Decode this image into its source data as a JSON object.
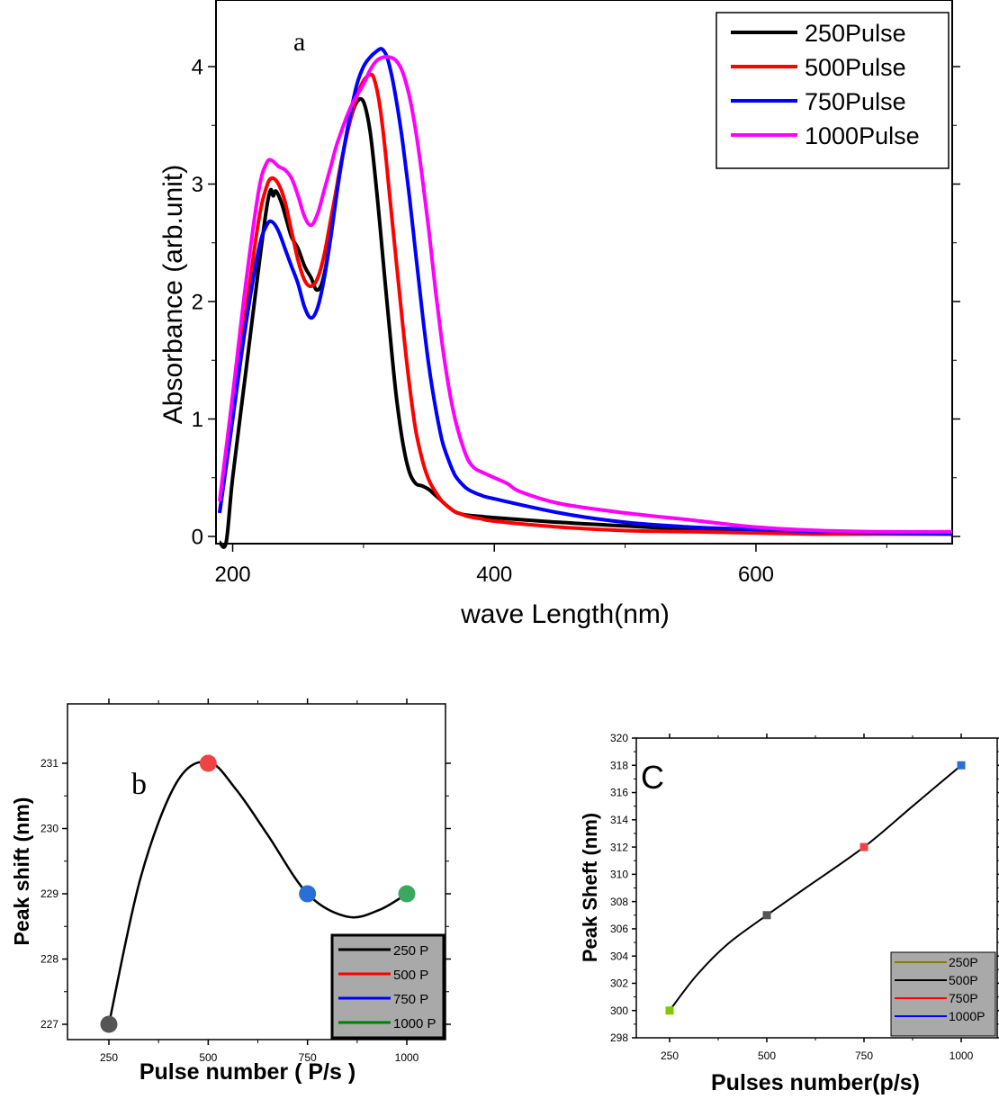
{
  "chart_data": [
    {
      "type": "line",
      "panel_label": "a",
      "xlabel": "wave Length(nm)",
      "ylabel": "Absorbance (arb.unit)",
      "xlim": [
        190,
        750
      ],
      "ylim": [
        -0.08,
        4.5
      ],
      "xticks": [
        200,
        400,
        600
      ],
      "yticks": [
        0,
        1,
        2,
        3,
        4
      ],
      "legend_position": "top-right",
      "series": [
        {
          "name": "250Pulse",
          "color": "#000000",
          "x": [
            190,
            195,
            200,
            210,
            220,
            226,
            229,
            231,
            233,
            237,
            241,
            245,
            250,
            255,
            260,
            264,
            268,
            272,
            276,
            280,
            285,
            290,
            295,
            300,
            305,
            310,
            315,
            320,
            325,
            330,
            335,
            340,
            345,
            350,
            355,
            360,
            365,
            370,
            375,
            380,
            390,
            400,
            450,
            500,
            550,
            600,
            650,
            700,
            750
          ],
          "y": [
            -0.05,
            -0.05,
            0.5,
            1.4,
            2.3,
            2.8,
            2.95,
            2.9,
            2.94,
            2.85,
            2.7,
            2.55,
            2.45,
            2.3,
            2.2,
            2.1,
            2.15,
            2.35,
            2.65,
            3.0,
            3.3,
            3.55,
            3.7,
            3.7,
            3.45,
            2.95,
            2.35,
            1.75,
            1.2,
            0.8,
            0.55,
            0.45,
            0.43,
            0.4,
            0.35,
            0.3,
            0.25,
            0.21,
            0.19,
            0.18,
            0.17,
            0.16,
            0.12,
            0.09,
            0.06,
            0.04,
            0.03,
            0.03,
            0.03
          ]
        },
        {
          "name": "500Pulse",
          "color": "#ff0000",
          "x": [
            190,
            200,
            210,
            220,
            226,
            230,
            235,
            240,
            245,
            250,
            255,
            260,
            265,
            270,
            275,
            280,
            285,
            290,
            295,
            300,
            305,
            308,
            312,
            316,
            320,
            325,
            330,
            335,
            340,
            345,
            350,
            355,
            360,
            365,
            370,
            375,
            380,
            390,
            400,
            450,
            500,
            550,
            600,
            650,
            700,
            750
          ],
          "y": [
            0.2,
            1.0,
            1.9,
            2.7,
            2.98,
            3.05,
            3.0,
            2.85,
            2.6,
            2.35,
            2.18,
            2.13,
            2.2,
            2.4,
            2.7,
            3.0,
            3.3,
            3.55,
            3.75,
            3.88,
            3.93,
            3.9,
            3.7,
            3.35,
            2.9,
            2.35,
            1.8,
            1.3,
            0.9,
            0.65,
            0.48,
            0.38,
            0.3,
            0.25,
            0.21,
            0.19,
            0.17,
            0.15,
            0.13,
            0.08,
            0.05,
            0.04,
            0.03,
            0.02,
            0.02,
            0.02
          ]
        },
        {
          "name": "750Pulse",
          "color": "#0000ff",
          "x": [
            190,
            200,
            210,
            220,
            226,
            230,
            235,
            240,
            245,
            250,
            255,
            260,
            265,
            270,
            275,
            280,
            285,
            290,
            295,
            300,
            305,
            310,
            314,
            318,
            322,
            326,
            330,
            335,
            340,
            345,
            350,
            355,
            360,
            365,
            370,
            375,
            380,
            390,
            400,
            450,
            500,
            550,
            600,
            650,
            700,
            750
          ],
          "y": [
            0.2,
            1.0,
            1.8,
            2.45,
            2.65,
            2.68,
            2.6,
            2.45,
            2.3,
            2.15,
            1.95,
            1.86,
            1.95,
            2.2,
            2.55,
            2.95,
            3.3,
            3.6,
            3.85,
            4.0,
            4.08,
            4.13,
            4.15,
            4.08,
            3.9,
            3.65,
            3.35,
            2.9,
            2.4,
            1.9,
            1.45,
            1.1,
            0.82,
            0.65,
            0.52,
            0.45,
            0.4,
            0.35,
            0.32,
            0.2,
            0.12,
            0.08,
            0.06,
            0.04,
            0.03,
            0.02
          ]
        },
        {
          "name": "1000Pulse",
          "color": "#ff00ff",
          "x": [
            190,
            200,
            210,
            220,
            226,
            230,
            235,
            240,
            245,
            250,
            255,
            260,
            265,
            270,
            275,
            280,
            290,
            300,
            305,
            310,
            315,
            320,
            325,
            330,
            335,
            340,
            345,
            350,
            355,
            360,
            365,
            370,
            375,
            380,
            385,
            390,
            400,
            410,
            420,
            450,
            500,
            550,
            600,
            650,
            700,
            750
          ],
          "y": [
            0.3,
            1.2,
            2.15,
            2.95,
            3.18,
            3.2,
            3.15,
            3.12,
            3.05,
            2.9,
            2.72,
            2.65,
            2.75,
            2.95,
            3.15,
            3.35,
            3.65,
            3.85,
            3.97,
            4.05,
            4.08,
            4.08,
            4.05,
            3.95,
            3.75,
            3.45,
            3.05,
            2.6,
            2.1,
            1.65,
            1.28,
            1.0,
            0.8,
            0.65,
            0.58,
            0.55,
            0.5,
            0.45,
            0.38,
            0.28,
            0.2,
            0.14,
            0.08,
            0.05,
            0.04,
            0.04
          ]
        }
      ]
    },
    {
      "type": "line",
      "panel_label": "b",
      "xlabel": "Pulse number ( P/s )",
      "ylabel": "Peak shift (nm)",
      "xlim": [
        150,
        1100
      ],
      "ylim": [
        226.6,
        231.6
      ],
      "xticks": [
        250,
        500,
        750,
        1000
      ],
      "yticks": [
        227,
        228,
        229,
        230,
        231
      ],
      "legend_position": "bottom-right",
      "points": [
        {
          "x": 250,
          "y": 227,
          "color": "#555555"
        },
        {
          "x": 500,
          "y": 231,
          "color": "#ee4444"
        },
        {
          "x": 750,
          "y": 229,
          "color": "#2a6fd6"
        },
        {
          "x": 1000,
          "y": 229,
          "color": "#3aa860"
        }
      ],
      "series": [
        {
          "name": "250 P",
          "color": "#000000"
        },
        {
          "name": "500 P",
          "color": "#ff0000"
        },
        {
          "name": "750 P",
          "color": "#0000ff"
        },
        {
          "name": "1000 P",
          "color": "#008000"
        }
      ]
    },
    {
      "type": "line",
      "panel_label": "C",
      "xlabel": "Pulses number(p/s)",
      "ylabel": "Peak Sheft (nm)",
      "xlim": [
        150,
        1100
      ],
      "ylim": [
        298,
        320
      ],
      "xticks": [
        250,
        500,
        750,
        1000
      ],
      "yticks": [
        298,
        300,
        302,
        304,
        306,
        308,
        310,
        312,
        314,
        316,
        318,
        320
      ],
      "legend_position": "bottom-right",
      "points": [
        {
          "x": 250,
          "y": 300,
          "color": "#7ec800"
        },
        {
          "x": 500,
          "y": 307,
          "color": "#555555"
        },
        {
          "x": 750,
          "y": 312,
          "color": "#ee4444"
        },
        {
          "x": 1000,
          "y": 318,
          "color": "#2a6fd6"
        }
      ],
      "series": [
        {
          "name": "250P",
          "color": "#808000"
        },
        {
          "name": "500P",
          "color": "#000000"
        },
        {
          "name": "750P",
          "color": "#ff0000"
        },
        {
          "name": "1000P",
          "color": "#0000ff"
        }
      ]
    }
  ]
}
